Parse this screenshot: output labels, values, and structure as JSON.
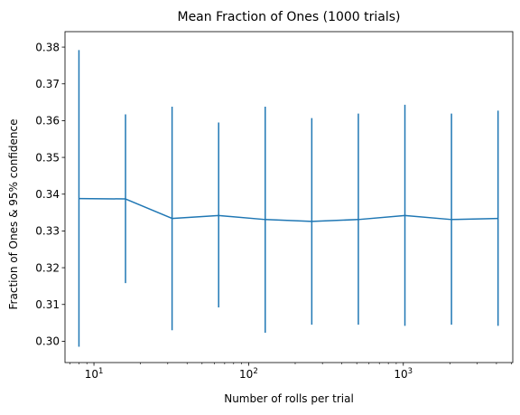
{
  "chart_data": {
    "type": "line",
    "title": "Mean Fraction of Ones (1000 trials)",
    "xlabel": "Number of rolls per trial",
    "ylabel": "Fraction of Ones & 95% confidence",
    "xscale": "log",
    "xlim": [
      6.5,
      5100
    ],
    "ylim": [
      0.2942,
      0.3842
    ],
    "grid": false,
    "x_ticks": [
      {
        "base": "10",
        "exp": "1",
        "value": 10
      },
      {
        "base": "10",
        "exp": "2",
        "value": 100
      },
      {
        "base": "10",
        "exp": "3",
        "value": 1000
      }
    ],
    "y_ticks": [
      "0.30",
      "0.31",
      "0.32",
      "0.33",
      "0.34",
      "0.35",
      "0.36",
      "0.37",
      "0.38"
    ],
    "series": [
      {
        "color": "#1f77b4",
        "points": [
          {
            "x": 8,
            "y": 0.3388,
            "lo": 0.2985,
            "hi": 0.3792
          },
          {
            "x": 16,
            "y": 0.3387,
            "lo": 0.3158,
            "hi": 0.3617
          },
          {
            "x": 32,
            "y": 0.3334,
            "lo": 0.303,
            "hi": 0.3638
          },
          {
            "x": 64,
            "y": 0.3342,
            "lo": 0.3092,
            "hi": 0.3595
          },
          {
            "x": 128,
            "y": 0.3331,
            "lo": 0.3023,
            "hi": 0.3638
          },
          {
            "x": 256,
            "y": 0.3326,
            "lo": 0.3045,
            "hi": 0.3607
          },
          {
            "x": 512,
            "y": 0.3331,
            "lo": 0.3045,
            "hi": 0.3619
          },
          {
            "x": 1024,
            "y": 0.3342,
            "lo": 0.3042,
            "hi": 0.3643
          },
          {
            "x": 2048,
            "y": 0.3331,
            "lo": 0.3045,
            "hi": 0.3619
          },
          {
            "x": 4096,
            "y": 0.3334,
            "lo": 0.3042,
            "hi": 0.3627
          }
        ]
      }
    ]
  }
}
